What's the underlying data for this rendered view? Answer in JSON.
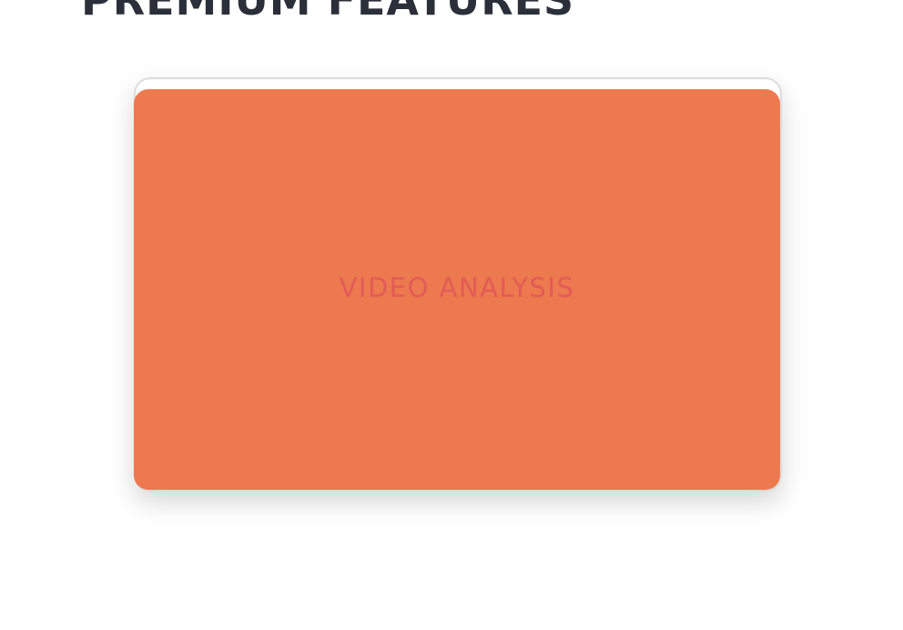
{
  "section": {
    "title": "PREMIUM FEATURES"
  },
  "feature_card": {
    "label": "VIDEO ANALYSIS",
    "background_color": "#ed794f",
    "label_color": "#e35a57"
  }
}
